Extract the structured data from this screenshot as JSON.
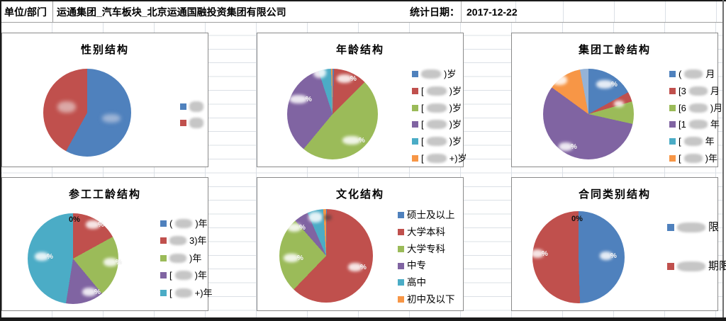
{
  "header": {
    "unit_label": "单位/部门",
    "company": "运通集团_汽车板块_北京运通国融投资集团有限公司",
    "date_label": "统计日期：",
    "date_value": "2017-12-22"
  },
  "palette": {
    "blue": "#4F81BD",
    "red": "#C0504D",
    "green": "#9BBB59",
    "purple": "#8064A2",
    "teal": "#4BACC6",
    "orange": "#F79646",
    "light_blue": "#95B3D7",
    "gridline": "#dbe0e6"
  },
  "charts": [
    {
      "id": "gender",
      "title": "性别结构",
      "legend": [
        {
          "color": "#4F81BD",
          "redacted": true,
          "prefix": "",
          "suffix": ""
        },
        {
          "color": "#C0504D",
          "redacted": true,
          "prefix": "",
          "suffix": ""
        }
      ],
      "slices": [
        {
          "color": "#4F81BD",
          "value": 58
        },
        {
          "color": "#C0504D",
          "value": 42
        }
      ],
      "labels": [
        {
          "blur": "pink"
        },
        {
          "blur": "blue"
        }
      ]
    },
    {
      "id": "age",
      "title": "年龄结构",
      "legend": [
        {
          "color": "#4F81BD",
          "redacted": true,
          "prefix": "",
          "suffix": ")岁"
        },
        {
          "color": "#C0504D",
          "redacted": true,
          "prefix": "[",
          "suffix": ")岁"
        },
        {
          "color": "#9BBB59",
          "redacted": true,
          "prefix": "[",
          "suffix": ")岁"
        },
        {
          "color": "#8064A2",
          "redacted": true,
          "prefix": "[",
          "suffix": ")岁"
        },
        {
          "color": "#4BACC6",
          "redacted": true,
          "prefix": "[",
          "suffix": ")岁"
        },
        {
          "color": "#F79646",
          "redacted": true,
          "prefix": "[",
          "suffix": "+)岁"
        }
      ],
      "slices": [
        {
          "color": "#4F81BD",
          "value": 0.5
        },
        {
          "color": "#C0504D",
          "value": 12
        },
        {
          "color": "#9BBB59",
          "value": 48.5
        },
        {
          "color": "#8064A2",
          "value": 34
        },
        {
          "color": "#4BACC6",
          "value": 4.5
        },
        {
          "color": "#F79646",
          "value": 0.5
        }
      ],
      "labels": [
        {
          "blur": "light",
          "suffix": "%"
        },
        {
          "blur": "light",
          "suffix": "%"
        },
        {
          "blur": "light"
        },
        {
          "blur": "light",
          "suffix": "%"
        }
      ]
    },
    {
      "id": "group-tenure",
      "title": "集团工龄结构",
      "legend": [
        {
          "color": "#4F81BD",
          "redacted": true,
          "prefix": "(",
          "suffix": "月"
        },
        {
          "color": "#C0504D",
          "redacted": true,
          "prefix": "[3",
          "suffix": "月"
        },
        {
          "color": "#9BBB59",
          "redacted": true,
          "prefix": "[6",
          "suffix": ")月"
        },
        {
          "color": "#8064A2",
          "redacted": true,
          "prefix": "[1",
          "suffix": "年"
        },
        {
          "color": "#4BACC6",
          "redacted": true,
          "prefix": "[",
          "suffix": "年"
        },
        {
          "color": "#F79646",
          "redacted": true,
          "prefix": "[",
          "suffix": ")年"
        }
      ],
      "slices": [
        {
          "color": "#4F81BD",
          "value": 17
        },
        {
          "color": "#C0504D",
          "value": 3.5
        },
        {
          "color": "#9BBB59",
          "value": 8
        },
        {
          "color": "#8064A2",
          "value": 56.5
        },
        {
          "color": "#F79646",
          "value": 12
        },
        {
          "color": "#95B3D7",
          "value": 3
        }
      ],
      "labels": [
        {
          "blur": "light",
          "suffix": "%"
        },
        {
          "blur": "light"
        },
        {
          "blur": "light"
        },
        {
          "blur": "light",
          "suffix": "%"
        }
      ]
    },
    {
      "id": "work-tenure",
      "title": "参工工龄结构",
      "legend": [
        {
          "color": "#4F81BD",
          "redacted": true,
          "prefix": "(",
          "suffix": ")年"
        },
        {
          "color": "#C0504D",
          "redacted": true,
          "prefix": "",
          "suffix": "3)年"
        },
        {
          "color": "#9BBB59",
          "redacted": true,
          "prefix": "",
          "suffix": ")年"
        },
        {
          "color": "#8064A2",
          "redacted": true,
          "prefix": "[",
          "suffix": ")年"
        },
        {
          "color": "#4BACC6",
          "redacted": true,
          "prefix": "[",
          "suffix": "+)年"
        }
      ],
      "slices": [
        {
          "color": "#C0504D",
          "value": 17
        },
        {
          "color": "#9BBB59",
          "value": 22
        },
        {
          "color": "#8064A2",
          "value": 13.5
        },
        {
          "color": "#4BACC6",
          "value": 47.5
        }
      ],
      "labels": [
        {
          "text": "0%"
        },
        {
          "blur": "light",
          "suffix": "%"
        },
        {
          "blur": "light",
          "suffix": "%"
        },
        {
          "blur": "light",
          "suffix": "%"
        },
        {
          "blur": "light",
          "suffix": "%"
        }
      ]
    },
    {
      "id": "education",
      "title": "文化结构",
      "legend": [
        {
          "color": "#4F81BD",
          "redacted": false,
          "label": "硕士及以上"
        },
        {
          "color": "#C0504D",
          "redacted": false,
          "label": "大学本科"
        },
        {
          "color": "#9BBB59",
          "redacted": false,
          "label": "大学专科"
        },
        {
          "color": "#8064A2",
          "redacted": false,
          "label": "中专"
        },
        {
          "color": "#4BACC6",
          "redacted": false,
          "label": "高中"
        },
        {
          "color": "#F79646",
          "redacted": false,
          "label": "初中及以下"
        }
      ],
      "slices": [
        {
          "color": "#4F81BD",
          "value": 0.2
        },
        {
          "color": "#C0504D",
          "value": 62
        },
        {
          "color": "#9BBB59",
          "value": 26.3
        },
        {
          "color": "#8064A2",
          "value": 5
        },
        {
          "color": "#4BACC6",
          "value": 5.5
        },
        {
          "color": "#F79646",
          "value": 1
        }
      ],
      "labels": [
        {
          "blur": "light",
          "suffix": "%"
        },
        {
          "blur": "light",
          "suffix": "%"
        },
        {
          "blur": "light",
          "suffix": "%"
        },
        {
          "blur": "light"
        },
        {
          "blur": "dark"
        }
      ]
    },
    {
      "id": "contract-type",
      "title": "合同类别结构",
      "legend": [
        {
          "color": "#4F81BD",
          "redacted": true,
          "prefix": "",
          "suffix": "限"
        },
        {
          "color": "#C0504D",
          "redacted": true,
          "prefix": "",
          "suffix": "期限"
        }
      ],
      "slices": [
        {
          "color": "#4F81BD",
          "value": 49.5
        },
        {
          "color": "#C0504D",
          "value": 50.5
        }
      ],
      "labels": [
        {
          "text": "0%"
        },
        {
          "blur": "light",
          "suffix": "%"
        },
        {
          "blur": "light",
          "suffix": "%"
        }
      ]
    }
  ],
  "chart_data": [
    {
      "type": "pie",
      "title": "性别结构",
      "labels": [
        "██",
        "██"
      ],
      "values": [
        58,
        42
      ],
      "colors": [
        "#4F81BD",
        "#C0504D"
      ],
      "legend_position": "right",
      "labels_redacted": true,
      "values_estimated": true
    },
    {
      "type": "pie",
      "title": "年龄结构",
      "labels": [
        "██)岁",
        "[██)岁",
        "[██)岁",
        "[██)岁",
        "[██)岁",
        "[██+)岁"
      ],
      "values": [
        0.5,
        12,
        48.5,
        34,
        4.5,
        0.5
      ],
      "colors": [
        "#4F81BD",
        "#C0504D",
        "#9BBB59",
        "#8064A2",
        "#4BACC6",
        "#F79646"
      ],
      "legend_position": "right",
      "labels_redacted": true,
      "values_estimated": true
    },
    {
      "type": "pie",
      "title": "集团工龄结构",
      "labels": [
        "(██月",
        "[3██月",
        "[6██)月",
        "[1██年",
        "[██年",
        "[██)年",
        "██"
      ],
      "values": [
        17,
        3.5,
        8,
        56.5,
        0,
        12,
        3
      ],
      "colors": [
        "#4F81BD",
        "#C0504D",
        "#9BBB59",
        "#8064A2",
        "#4BACC6",
        "#F79646",
        "#95B3D7"
      ],
      "legend_position": "right",
      "labels_redacted": true,
      "values_estimated": true
    },
    {
      "type": "pie",
      "title": "参工工龄结构",
      "labels": [
        "(██)年",
        "██3)年",
        "██)年",
        "[██)年",
        "[██+)年"
      ],
      "values": [
        0,
        17,
        22,
        13.5,
        47.5
      ],
      "colors": [
        "#4F81BD",
        "#C0504D",
        "#9BBB59",
        "#8064A2",
        "#4BACC6"
      ],
      "legend_position": "right",
      "labels_redacted": true,
      "values_estimated": true
    },
    {
      "type": "pie",
      "title": "文化结构",
      "labels": [
        "硕士及以上",
        "大学本科",
        "大学专科",
        "中专",
        "高中",
        "初中及以下"
      ],
      "values": [
        0.2,
        62,
        26.3,
        5,
        5.5,
        1
      ],
      "colors": [
        "#4F81BD",
        "#C0504D",
        "#9BBB59",
        "#8064A2",
        "#4BACC6",
        "#F79646"
      ],
      "legend_position": "right",
      "labels_redacted": false,
      "values_estimated": true
    },
    {
      "type": "pie",
      "title": "合同类别结构",
      "labels": [
        "██限",
        "██期限"
      ],
      "values": [
        49.5,
        50.5
      ],
      "colors": [
        "#4F81BD",
        "#C0504D"
      ],
      "legend_position": "right",
      "labels_redacted": true,
      "values_estimated": true
    }
  ]
}
